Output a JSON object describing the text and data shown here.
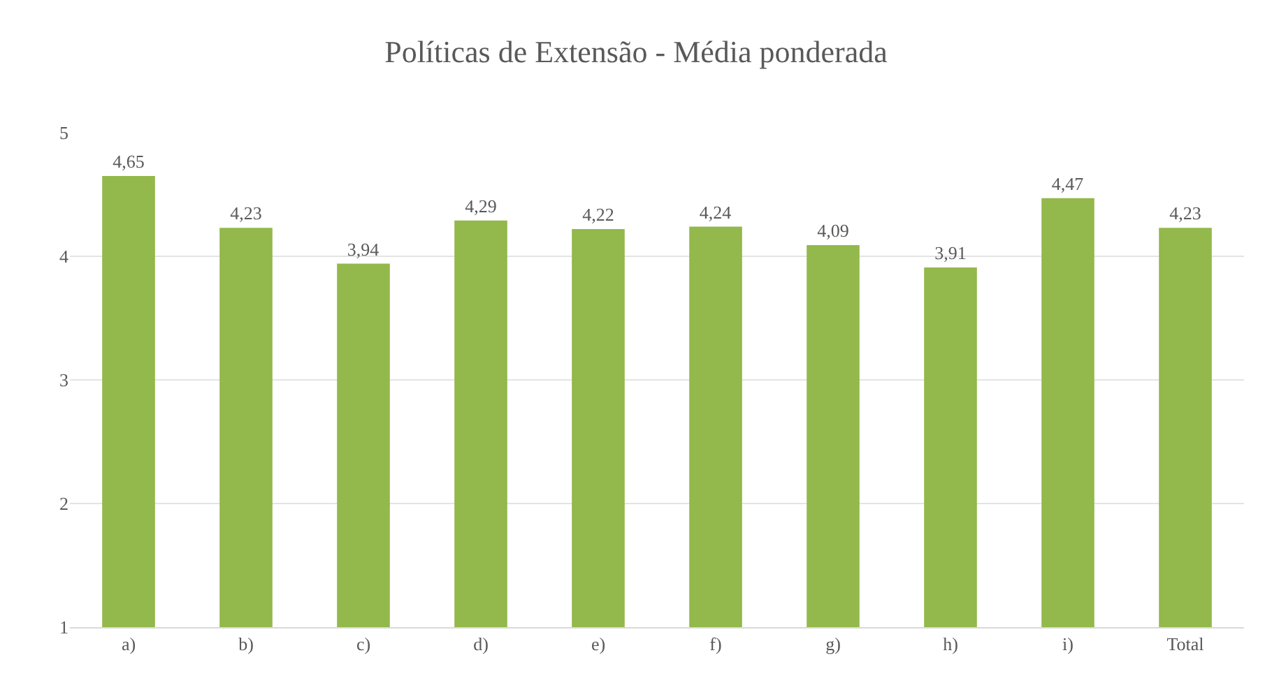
{
  "chart_data": {
    "type": "bar",
    "title": "Políticas de Extensão - Média ponderada",
    "categories": [
      "a)",
      "b)",
      "c)",
      "d)",
      "e)",
      "f)",
      "g)",
      "h)",
      "i)",
      "Total"
    ],
    "values": [
      4.65,
      4.23,
      3.94,
      4.29,
      4.22,
      4.24,
      4.09,
      3.91,
      4.47,
      4.23
    ],
    "value_labels": [
      "4,65",
      "4,23",
      "3,94",
      "4,29",
      "4,22",
      "4,24",
      "4,09",
      "3,91",
      "4,47",
      "4,23"
    ],
    "color": "#93b84b",
    "ylim": [
      1,
      5
    ],
    "yticks": [
      1,
      2,
      3,
      4,
      5
    ],
    "grid": "y"
  }
}
